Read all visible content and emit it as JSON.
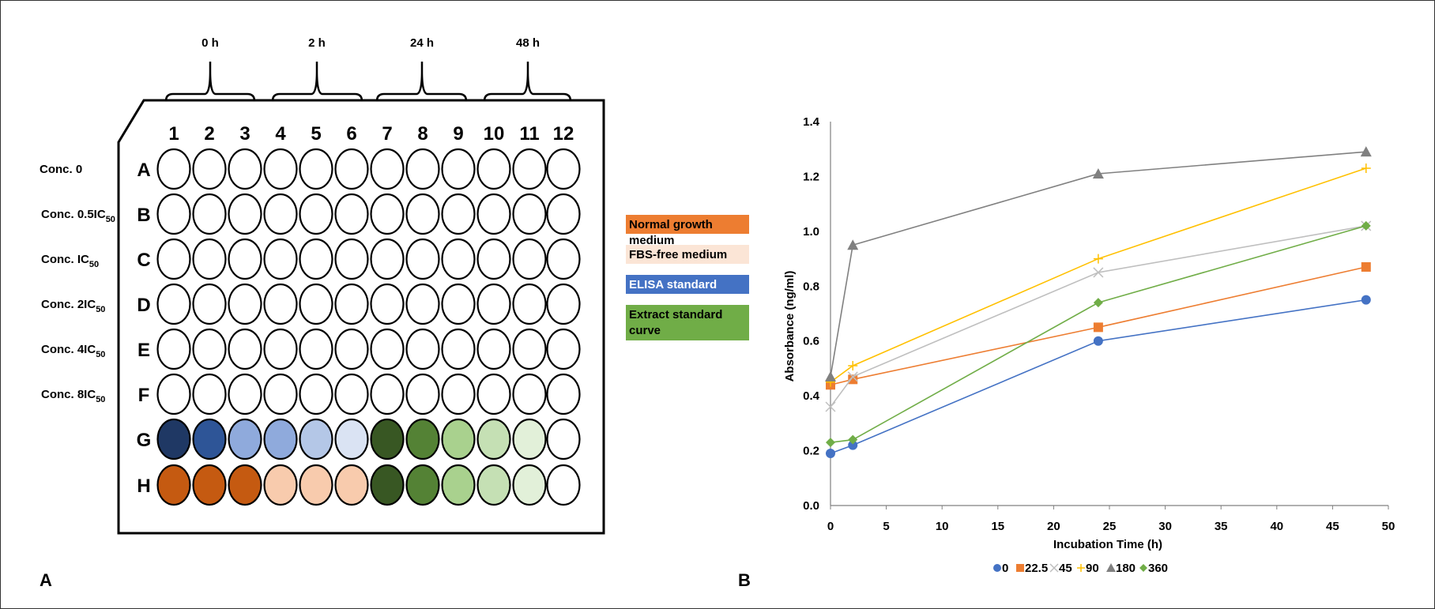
{
  "panels": {
    "a": "A",
    "b": "B"
  },
  "plate": {
    "time_groups": [
      "0 h",
      "2 h",
      "24 h",
      "48 h"
    ],
    "columns": [
      "1",
      "2",
      "3",
      "4",
      "5",
      "6",
      "7",
      "8",
      "9",
      "10",
      "11",
      "12"
    ],
    "rows": [
      "A",
      "B",
      "C",
      "D",
      "E",
      "F",
      "G",
      "H"
    ],
    "conc_labels": [
      {
        "main": "Conc. 0",
        "sub": ""
      },
      {
        "main": "Conc. 0.5IC",
        "sub": "50"
      },
      {
        "main": "Conc. IC",
        "sub": "50"
      },
      {
        "main": "Conc. 2IC",
        "sub": "50"
      },
      {
        "main": "Conc. 4IC",
        "sub": "50"
      },
      {
        "main": "Conc. 8IC",
        "sub": "50"
      }
    ],
    "row_G_colors": [
      "#1f3864",
      "#2e5597",
      "#8faadc",
      "#8faadc",
      "#b4c7e7",
      "#dae3f3",
      "#385723",
      "#548235",
      "#a9d18e",
      "#c5e0b4",
      "#e2f0d9",
      "#ffffff"
    ],
    "row_H_colors": [
      "#c55a11",
      "#c55a11",
      "#c55a11",
      "#f8cbad",
      "#f8cbad",
      "#f8cbad",
      "#385723",
      "#548235",
      "#a9d18e",
      "#c5e0b4",
      "#e2f0d9",
      "#ffffff"
    ]
  },
  "legend": [
    {
      "label": "Normal growth medium",
      "color": "#ed7d31"
    },
    {
      "label": "FBS-free medium",
      "color": "#fbe5d6"
    },
    {
      "label": "ELISA standard curve",
      "color": "#4472c4"
    },
    {
      "label": "Extract standard curve",
      "color": "#70ad47"
    }
  ],
  "chart_data": {
    "type": "line",
    "xlabel": "Incubation Time (h)",
    "ylabel": "Absorbance (ng/ml)",
    "xlim": [
      0,
      50
    ],
    "ylim": [
      0,
      1.4
    ],
    "xticks": [
      0,
      5,
      10,
      15,
      20,
      25,
      30,
      35,
      40,
      45,
      50
    ],
    "yticks": [
      "0.0",
      "0.2",
      "0.4",
      "0.6",
      "0.8",
      "1.0",
      "1.2",
      "1.4"
    ],
    "x": [
      0,
      2,
      24,
      48
    ],
    "grid": false,
    "legend_position": "bottom",
    "series": [
      {
        "name": "0",
        "color": "#4472c4",
        "marker": "circle",
        "values": [
          0.19,
          0.22,
          0.6,
          0.75
        ]
      },
      {
        "name": "22.5",
        "color": "#ed7d31",
        "marker": "square",
        "values": [
          0.44,
          0.46,
          0.65,
          0.87
        ]
      },
      {
        "name": "45",
        "color": "#bfbfbf",
        "marker": "cross",
        "values": [
          0.36,
          0.47,
          0.85,
          1.02
        ]
      },
      {
        "name": "90",
        "color": "#ffc000",
        "marker": "plus",
        "values": [
          0.45,
          0.51,
          0.9,
          1.23
        ]
      },
      {
        "name": "180",
        "color": "#808080",
        "marker": "triangle",
        "values": [
          0.47,
          0.95,
          1.21,
          1.29
        ]
      },
      {
        "name": "360",
        "color": "#70ad47",
        "marker": "diamond",
        "values": [
          0.23,
          0.24,
          0.74,
          1.02
        ]
      }
    ]
  }
}
